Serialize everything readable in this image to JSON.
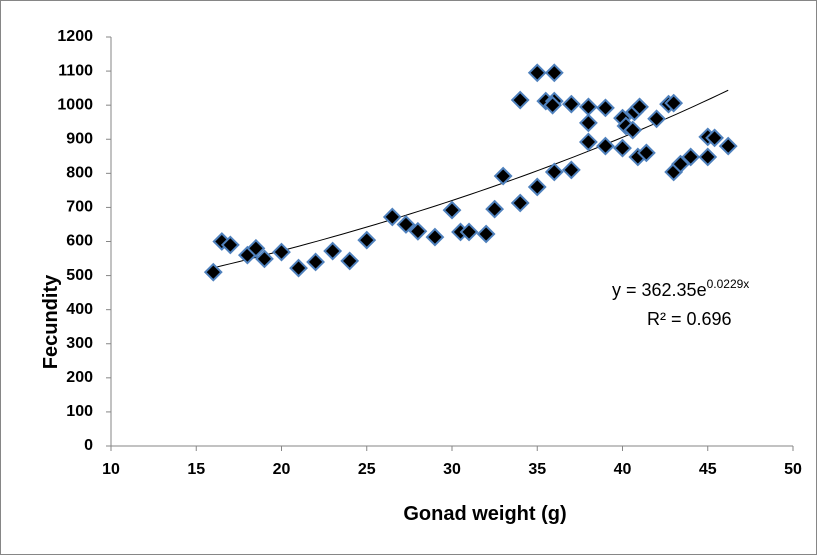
{
  "chart_data": {
    "type": "scatter",
    "x_label": "Gonad weight (g)",
    "y_label": "Fecundity",
    "x": [
      16,
      16.5,
      17,
      18,
      18.5,
      19,
      20,
      21,
      22,
      23,
      24,
      25,
      26.5,
      27.3,
      28,
      29,
      30,
      30.5,
      31,
      32,
      32.5,
      33,
      34,
      34,
      35,
      35,
      35.5,
      36,
      36,
      35.9,
      36,
      37,
      37,
      38,
      38,
      38,
      39,
      39,
      40,
      40,
      40.2,
      40.6,
      40.7,
      41,
      40.9,
      41.4,
      42,
      42.7,
      43,
      43,
      43.4,
      44,
      45,
      45,
      45.4,
      46.2
    ],
    "values": [
      510,
      600,
      590,
      560,
      580,
      549,
      569,
      522,
      540,
      572,
      543,
      604,
      672,
      650,
      630,
      613,
      692,
      628,
      628,
      622,
      695,
      792,
      713,
      1015,
      760,
      1095,
      1012,
      1095,
      1012,
      1000,
      804,
      1003,
      810,
      995,
      948,
      892,
      992,
      880,
      962,
      874,
      939,
      927,
      980,
      995,
      848,
      860,
      960,
      1003,
      1006,
      804,
      827,
      848,
      907,
      848,
      904,
      880
    ],
    "color": "#000000",
    "marker_edge_color": "#4f81bd",
    "xlim": [
      10,
      50
    ],
    "ylim": [
      0,
      1200
    ],
    "xticks": [
      10,
      15,
      20,
      25,
      30,
      35,
      40,
      45,
      50
    ],
    "yticks": [
      0,
      100,
      200,
      300,
      400,
      500,
      600,
      700,
      800,
      900,
      1000,
      1100,
      1200
    ],
    "grid": false,
    "trendline": {
      "type": "exponential",
      "a": 362.35,
      "b": 0.0229,
      "color": "#000000"
    },
    "equation": "y = 362.35e",
    "equation_exponent": "0.0229x",
    "r_squared": "R² = 0.696"
  }
}
